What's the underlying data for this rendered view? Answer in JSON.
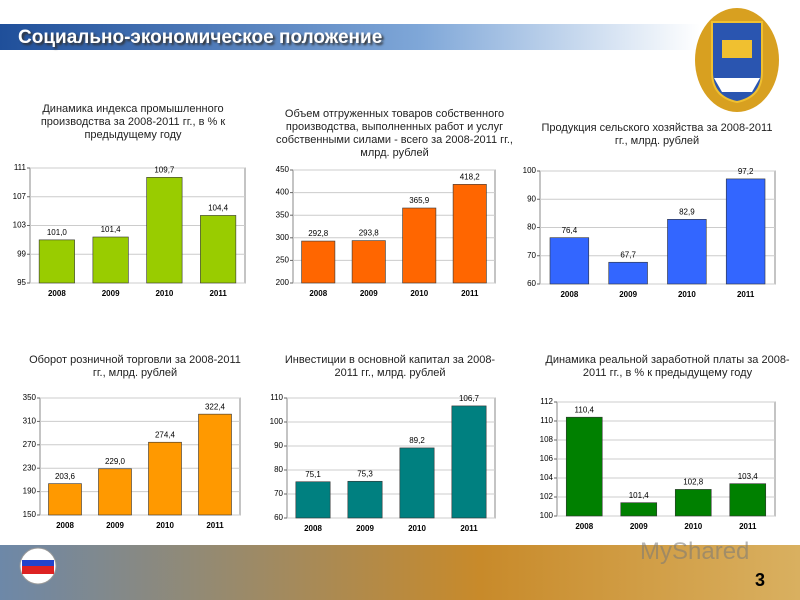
{
  "header": {
    "title": "Социально-экономическое положение"
  },
  "page_number": 3,
  "watermark": "MyShared",
  "chart_data": [
    {
      "type": "bar",
      "title": "Динамика индекса промышленного производства за 2008-2011 гг., в % к предыдущему году",
      "categories": [
        "2008",
        "2009",
        "2010",
        "2011"
      ],
      "values": [
        101.0,
        101.4,
        109.7,
        104.4
      ],
      "value_labels": [
        "101,0",
        "101,4",
        "109,7",
        "104,4"
      ],
      "color": "#99cc00",
      "ylim": [
        95,
        111
      ],
      "yticks": [
        95,
        99,
        103,
        107,
        111
      ],
      "grid": true
    },
    {
      "type": "bar",
      "title": "Объем отгруженных товаров собственного производства, выполненных работ и услуг собственными силами - всего за 2008-2011 гг., млрд. рублей",
      "categories": [
        "2008",
        "2009",
        "2010",
        "2011"
      ],
      "values": [
        292.8,
        293.8,
        365.9,
        418.2
      ],
      "value_labels": [
        "292,8",
        "293,8",
        "365,9",
        "418,2"
      ],
      "color": "#ff6600",
      "ylim": [
        200,
        450
      ],
      "yticks": [
        200,
        250,
        300,
        350,
        400,
        450
      ],
      "grid": true
    },
    {
      "type": "bar",
      "title": "Продукция сельского хозяйства за 2008-2011 гг., млрд. рублей",
      "categories": [
        "2008",
        "2009",
        "2010",
        "2011"
      ],
      "values": [
        76.4,
        67.7,
        82.9,
        97.2
      ],
      "value_labels": [
        "76,4",
        "67,7",
        "82,9",
        "97,2"
      ],
      "color": "#3366ff",
      "ylim": [
        60,
        100
      ],
      "yticks": [
        60,
        70,
        80,
        90,
        100
      ],
      "grid": true
    },
    {
      "type": "bar",
      "title": "Оборот розничной торговли за 2008-2011 гг., млрд. рублей",
      "categories": [
        "2008",
        "2009",
        "2010",
        "2011"
      ],
      "values": [
        203.6,
        229.0,
        274.4,
        322.4
      ],
      "value_labels": [
        "203,6",
        "229,0",
        "274,4",
        "322,4"
      ],
      "color": "#ff9900",
      "ylim": [
        150,
        350
      ],
      "yticks": [
        150,
        190,
        230,
        270,
        310,
        350
      ],
      "grid": true
    },
    {
      "type": "bar",
      "title": "Инвестиции в основной капитал за 2008-2011 гг., млрд. рублей",
      "categories": [
        "2008",
        "2009",
        "2010",
        "2011"
      ],
      "values": [
        75.1,
        75.3,
        89.2,
        106.7
      ],
      "value_labels": [
        "75,1",
        "75,3",
        "89,2",
        "106,7"
      ],
      "color": "#008080",
      "ylim": [
        60,
        110
      ],
      "yticks": [
        60,
        70,
        80,
        90,
        100,
        110
      ],
      "grid": true
    },
    {
      "type": "bar",
      "title": "Динамика реальной заработной платы за 2008-2011 гг., в % к предыдущему году",
      "categories": [
        "2008",
        "2009",
        "2010",
        "2011"
      ],
      "values": [
        110.4,
        101.4,
        102.8,
        103.4
      ],
      "value_labels": [
        "110,4",
        "101,4",
        "102,8",
        "103,4"
      ],
      "color": "#008000",
      "ylim": [
        100,
        112
      ],
      "yticks": [
        100,
        102,
        104,
        106,
        108,
        110,
        112
      ],
      "grid": true
    }
  ]
}
